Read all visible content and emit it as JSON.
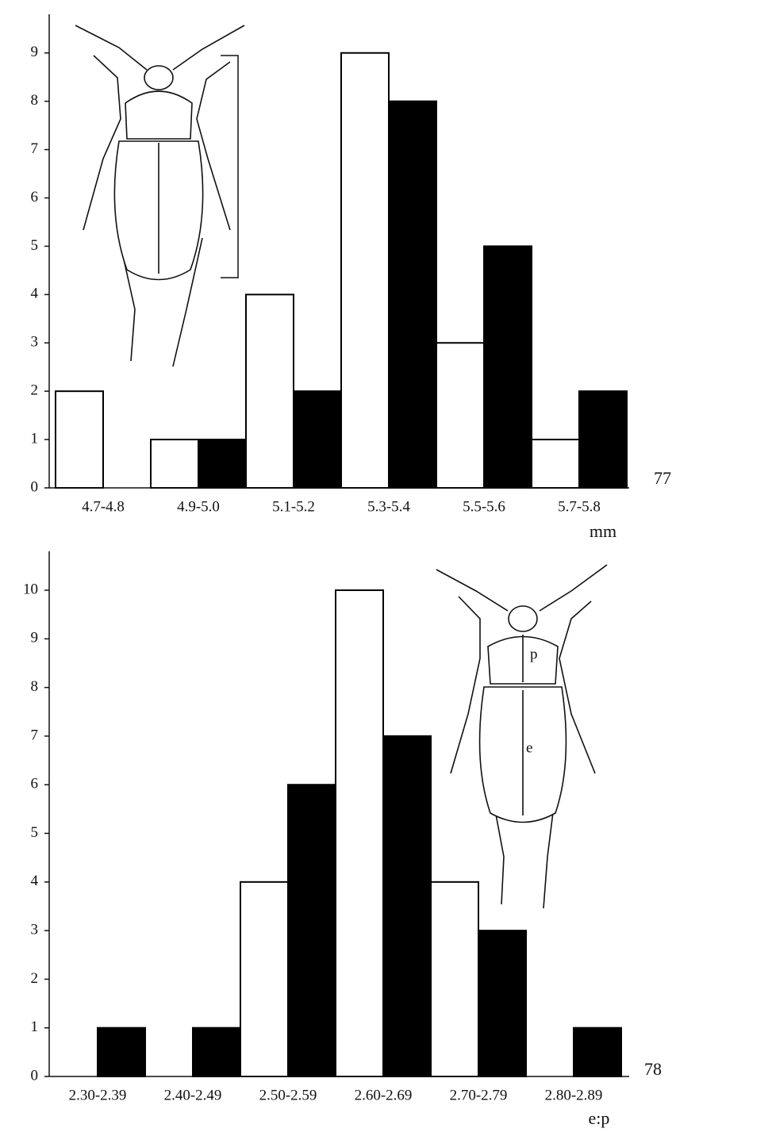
{
  "chart_data": [
    {
      "type": "bar",
      "figure_number": "77",
      "x_label": "mm",
      "categories": [
        "4.7-4.8",
        "4.9-5.0",
        "5.1-5.2",
        "5.3-5.4",
        "5.5-5.6",
        "5.7-5.8"
      ],
      "series": [
        {
          "color": "#ffffff",
          "values": [
            2,
            1,
            4,
            9,
            3,
            1
          ]
        },
        {
          "color": "#000000",
          "values": [
            0,
            1,
            2,
            8,
            5,
            2
          ]
        }
      ],
      "ylim": [
        0,
        9.8
      ],
      "yticks": [
        0,
        1,
        2,
        3,
        4,
        5,
        6,
        7,
        8,
        9
      ]
    },
    {
      "type": "bar",
      "figure_number": "78",
      "x_label": "e:p",
      "annotations": [
        "p",
        "e"
      ],
      "categories": [
        "2.30-2.39",
        "2.40-2.49",
        "2.50-2.59",
        "2.60-2.69",
        "2.70-2.79",
        "2.80-2.89"
      ],
      "series": [
        {
          "color": "#ffffff",
          "values": [
            0,
            0,
            4,
            10,
            4,
            0
          ]
        },
        {
          "color": "#000000",
          "values": [
            1,
            1,
            6,
            7,
            3,
            1
          ]
        }
      ],
      "ylim": [
        0,
        10.8
      ],
      "yticks": [
        0,
        1,
        2,
        3,
        4,
        5,
        6,
        7,
        8,
        9,
        10
      ]
    }
  ]
}
